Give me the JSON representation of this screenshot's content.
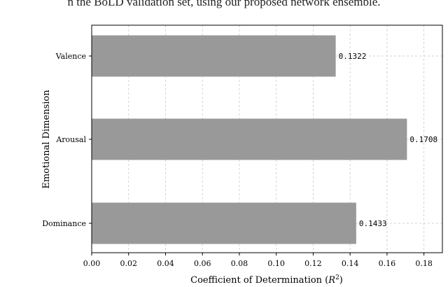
{
  "caption_fragment": "n the BoLD validation set, using our proposed network ensemble.",
  "chart_data": {
    "type": "bar",
    "orientation": "horizontal",
    "categories": [
      "Valence",
      "Arousal",
      "Dominance"
    ],
    "values": [
      0.1322,
      0.1708,
      0.1433
    ],
    "value_labels": [
      "0.1322",
      "0.1708",
      "0.1433"
    ],
    "xlabel_prefix": "Coefficient of Determination (",
    "xlabel_symbol": "R",
    "xlabel_sup": "2",
    "xlabel_suffix": ")",
    "ylabel": "Emotional Dimension",
    "xlim": [
      0,
      0.19
    ],
    "xticks": [
      0.0,
      0.02,
      0.04,
      0.06,
      0.08,
      0.1,
      0.12,
      0.14,
      0.16,
      0.18
    ],
    "xtick_labels": [
      "0.00",
      "0.02",
      "0.04",
      "0.06",
      "0.08",
      "0.10",
      "0.12",
      "0.14",
      "0.16",
      "0.18"
    ],
    "grid": true,
    "bar_color": "#999999"
  }
}
